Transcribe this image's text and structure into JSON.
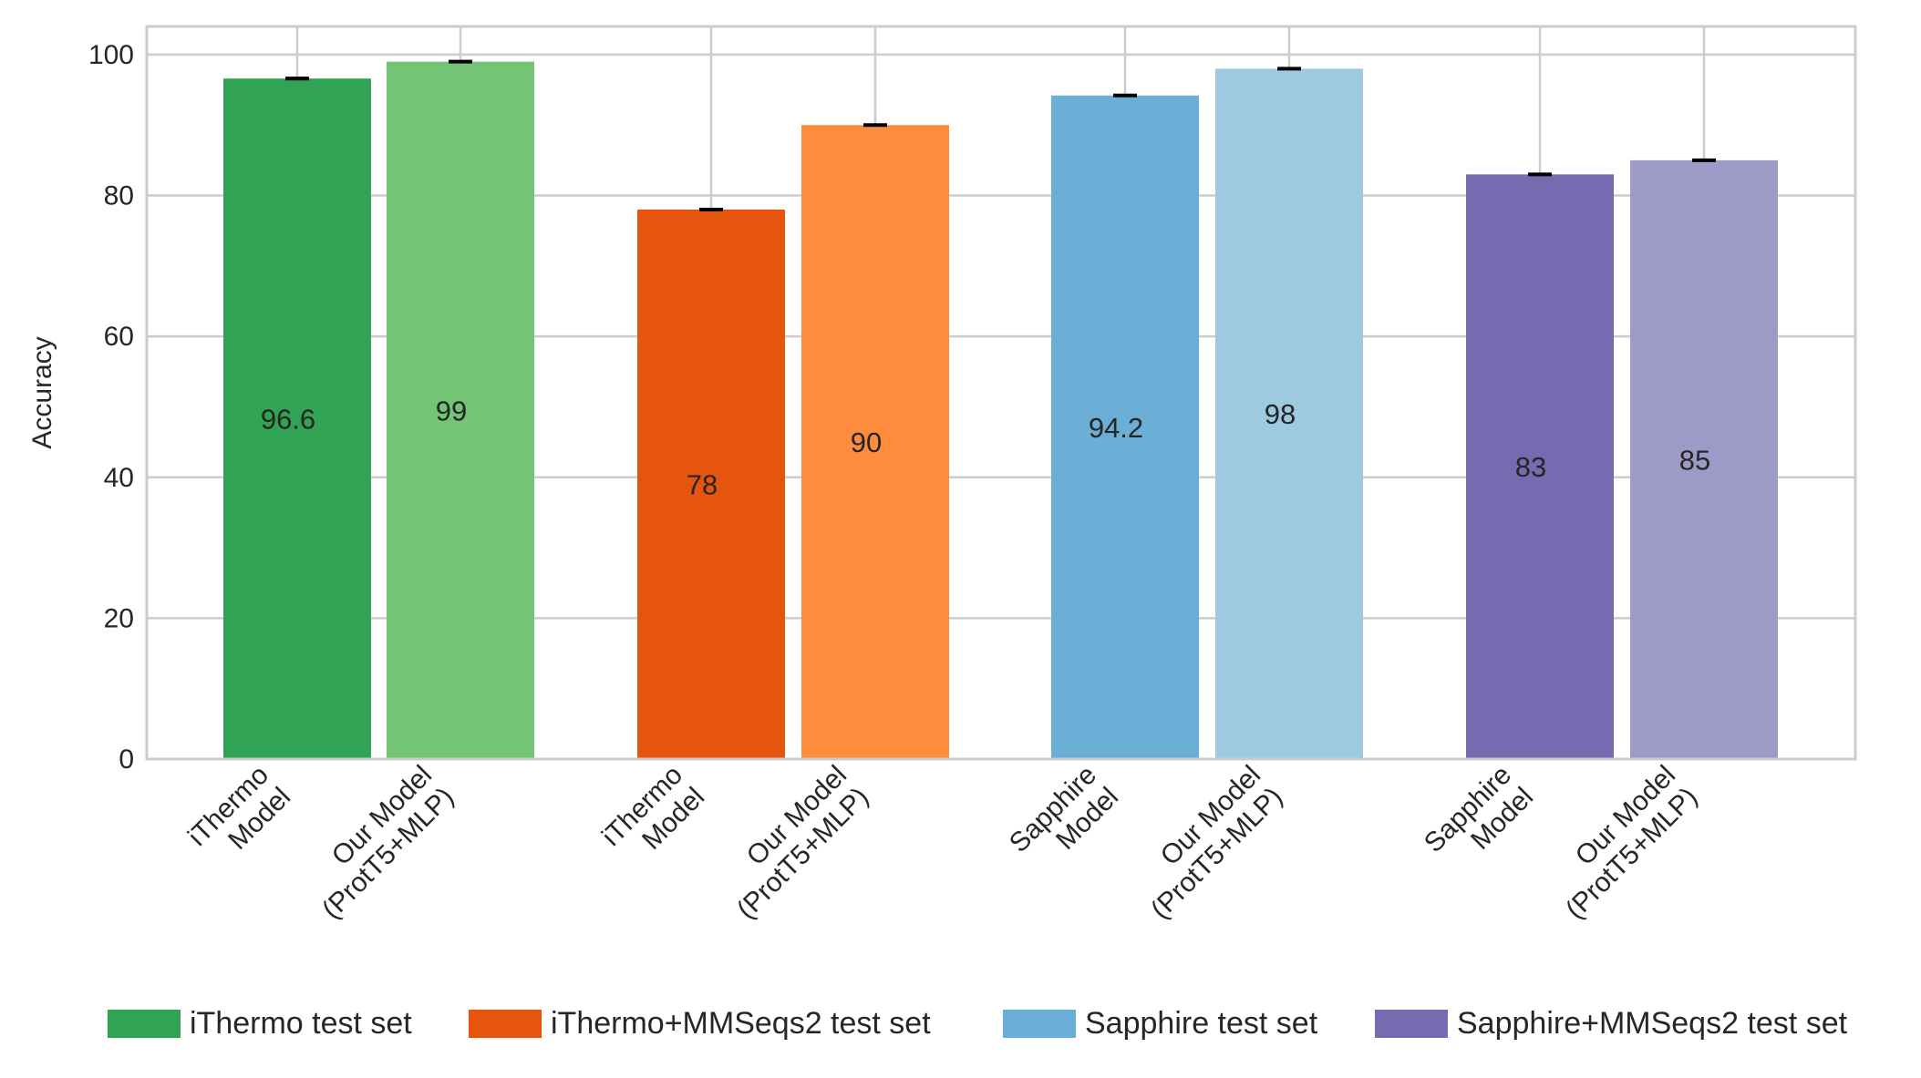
{
  "chart_data": {
    "type": "bar",
    "title": "",
    "xlabel": "",
    "ylabel": "Accuracy",
    "ylim": [
      0,
      104
    ],
    "yticks": [
      0,
      20,
      40,
      60,
      80,
      100
    ],
    "grid": true,
    "legend_position": "bottom",
    "bars": [
      {
        "label": [
          "iThermo",
          "Model"
        ],
        "value": 96.6,
        "error": 0.1,
        "series": "iThermo test set",
        "color": "#31a354"
      },
      {
        "label": [
          "Our Model",
          "(ProtT5+MLP)"
        ],
        "value": 99,
        "error": 0.1,
        "series": "iThermo test set",
        "color": "#74c476"
      },
      {
        "label": [
          "iThermo",
          "Model"
        ],
        "value": 78,
        "error": 0.1,
        "series": "iThermo+MMSeqs2 test set",
        "color": "#e6550d"
      },
      {
        "label": [
          "Our Model",
          "(ProtT5+MLP)"
        ],
        "value": 90,
        "error": 0.1,
        "series": "iThermo+MMSeqs2 test set",
        "color": "#fd8d3c"
      },
      {
        "label": [
          "Sapphire",
          "Model"
        ],
        "value": 94.2,
        "error": 0.1,
        "series": "Sapphire test set",
        "color": "#6baed6"
      },
      {
        "label": [
          "Our Model",
          "(ProtT5+MLP)"
        ],
        "value": 98,
        "error": 0.1,
        "series": "Sapphire test set",
        "color": "#9ecae1"
      },
      {
        "label": [
          "Sapphire",
          "Model"
        ],
        "value": 83,
        "error": 0.1,
        "series": "Sapphire+MMSeqs2 test set",
        "color": "#756bb1"
      },
      {
        "label": [
          "Our Model",
          "(ProtT5+MLP)"
        ],
        "value": 85,
        "error": 0.1,
        "series": "Sapphire+MMSeqs2 test set",
        "color": "#9e9ac8"
      }
    ],
    "legend": [
      {
        "name": "iThermo test set",
        "color": "#31a354"
      },
      {
        "name": "iThermo+MMSeqs2 test set",
        "color": "#e6550d"
      },
      {
        "name": "Sapphire test set",
        "color": "#6baed6"
      },
      {
        "name": "Sapphire+MMSeqs2 test set",
        "color": "#756bb1"
      }
    ]
  }
}
